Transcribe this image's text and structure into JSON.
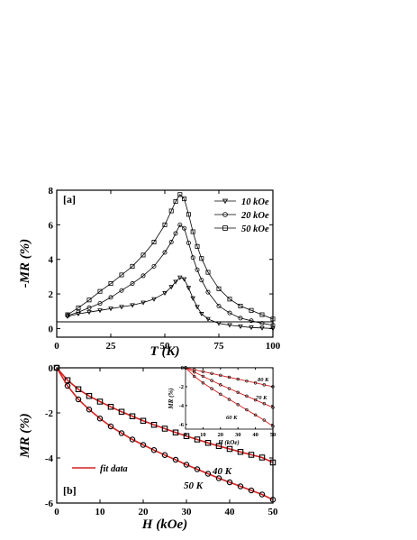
{
  "chart_data": [
    {
      "type": "line",
      "panel_label": "[a]",
      "xlabel": "T (K)",
      "ylabel": "-MR (%)",
      "xlim": [
        0,
        100
      ],
      "ylim": [
        -0.5,
        8
      ],
      "xticks": [
        0,
        25,
        50,
        75,
        100
      ],
      "yticks": [
        0,
        2,
        4,
        6,
        8
      ],
      "legend_position": "top-right",
      "series": [
        {
          "name": "10 kOe",
          "marker": "triangle-down",
          "x": [
            5,
            10,
            15,
            20,
            25,
            30,
            35,
            40,
            45,
            50,
            53,
            55,
            57,
            59,
            61,
            63,
            65,
            67,
            70,
            75,
            80,
            85,
            90,
            95,
            100
          ],
          "y": [
            0.7,
            0.85,
            0.95,
            1.05,
            1.15,
            1.25,
            1.35,
            1.5,
            1.7,
            2.05,
            2.4,
            2.7,
            2.95,
            2.85,
            2.35,
            1.75,
            1.25,
            0.85,
            0.55,
            0.3,
            0.2,
            0.12,
            0.06,
            0.03,
            0.0
          ]
        },
        {
          "name": "20 kOe",
          "marker": "circle",
          "x": [
            5,
            10,
            15,
            20,
            25,
            30,
            35,
            40,
            45,
            50,
            53,
            55,
            57,
            59,
            61,
            63,
            65,
            67,
            70,
            75,
            80,
            85,
            90,
            95,
            100
          ],
          "y": [
            0.75,
            0.95,
            1.2,
            1.45,
            1.8,
            2.2,
            2.6,
            3.05,
            3.6,
            4.4,
            5.0,
            5.5,
            6.0,
            5.8,
            4.95,
            4.1,
            3.4,
            2.8,
            2.1,
            1.3,
            0.9,
            0.6,
            0.45,
            0.3,
            0.2
          ]
        },
        {
          "name": "50 kOe",
          "marker": "square",
          "x": [
            5,
            10,
            15,
            20,
            25,
            30,
            35,
            40,
            45,
            50,
            53,
            55,
            57,
            59,
            61,
            63,
            65,
            67,
            70,
            75,
            80,
            85,
            90,
            95,
            100
          ],
          "y": [
            0.8,
            1.2,
            1.65,
            2.15,
            2.6,
            3.1,
            3.6,
            4.25,
            5.0,
            6.0,
            6.8,
            7.35,
            7.75,
            7.5,
            6.6,
            5.6,
            4.75,
            4.05,
            3.25,
            2.3,
            1.7,
            1.3,
            1.05,
            0.8,
            0.55
          ]
        }
      ]
    },
    {
      "type": "line",
      "panel_label": "[b]",
      "xlabel": "H (kOe)",
      "ylabel": "MR (%)",
      "xlim": [
        0,
        50
      ],
      "ylim": [
        -6,
        0
      ],
      "xticks": [
        0,
        10,
        20,
        30,
        40,
        50
      ],
      "yticks": [
        0,
        -2,
        -4,
        -6
      ],
      "legend_position": "bottom-left",
      "fit_label": "fit data",
      "fit_color": "#d62020",
      "series": [
        {
          "name": "40 K",
          "marker": "square",
          "x": [
            0,
            2.5,
            5,
            7.5,
            10,
            12.5,
            15,
            17.5,
            20,
            22.5,
            25,
            27.5,
            30,
            32.5,
            35,
            37.5,
            40,
            42.5,
            45,
            47.5,
            50
          ],
          "y": [
            0.0,
            -0.55,
            -0.95,
            -1.25,
            -1.5,
            -1.73,
            -1.95,
            -2.15,
            -2.35,
            -2.53,
            -2.7,
            -2.87,
            -3.03,
            -3.18,
            -3.33,
            -3.47,
            -3.6,
            -3.73,
            -3.86,
            -3.98,
            -4.2
          ]
        },
        {
          "name": "50 K",
          "marker": "circle",
          "x": [
            0,
            2.5,
            5,
            7.5,
            10,
            12.5,
            15,
            17.5,
            20,
            22.5,
            25,
            27.5,
            30,
            32.5,
            35,
            37.5,
            40,
            42.5,
            45,
            47.5,
            50
          ],
          "y": [
            0.0,
            -0.8,
            -1.4,
            -1.85,
            -2.25,
            -2.6,
            -2.9,
            -3.18,
            -3.42,
            -3.65,
            -3.87,
            -4.08,
            -4.3,
            -4.5,
            -4.7,
            -4.9,
            -5.08,
            -5.26,
            -5.44,
            -5.62,
            -5.85
          ]
        }
      ],
      "inset": {
        "xlabel": "H (kOe)",
        "ylabel": "MR (%)",
        "xlim": [
          0,
          50
        ],
        "ylim": [
          -6.5,
          0
        ],
        "xticks": [
          0,
          10,
          20,
          30,
          40,
          50
        ],
        "yticks": [
          0,
          -2,
          -4,
          -6
        ],
        "series": [
          {
            "name": "80 K",
            "x": [
              0,
              5,
              10,
              15,
              20,
              25,
              30,
              35,
              40,
              45,
              50
            ],
            "y": [
              0.0,
              -0.2,
              -0.4,
              -0.6,
              -0.8,
              -1.0,
              -1.2,
              -1.4,
              -1.6,
              -1.8,
              -2.0
            ]
          },
          {
            "name": "70 K",
            "x": [
              0,
              5,
              10,
              15,
              20,
              25,
              30,
              35,
              40,
              45,
              50
            ],
            "y": [
              0.0,
              -0.45,
              -0.9,
              -1.35,
              -1.8,
              -2.2,
              -2.6,
              -3.0,
              -3.4,
              -3.8,
              -4.2
            ]
          },
          {
            "name": "60 K",
            "x": [
              0,
              5,
              10,
              15,
              20,
              25,
              30,
              35,
              40,
              45,
              50
            ],
            "y": [
              0.0,
              -0.9,
              -1.6,
              -2.2,
              -2.8,
              -3.35,
              -3.9,
              -4.45,
              -5.0,
              -5.55,
              -6.2
            ]
          }
        ]
      }
    }
  ]
}
